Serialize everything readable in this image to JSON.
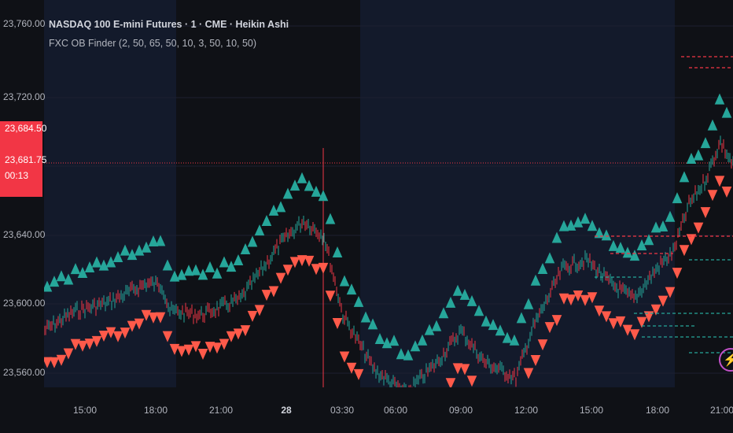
{
  "legend": {
    "title": "NASDAQ 100 E-mini Futures · 1 · CME · Heikin Ashi",
    "indicator": "FXC OB Finder (2, 50, 65, 50, 10, 3, 50, 10, 50)"
  },
  "price_axis": {
    "labels": [
      "23,760.00",
      "23,720.00",
      "23,640.00",
      "23,600.00",
      "23,560.00"
    ],
    "current_price_top": "23,684.50",
    "current_price": "23,681.75",
    "countdown": "00:13"
  },
  "time_axis": {
    "labels": [
      "15:00",
      "18:00",
      "21:00",
      "28",
      "03:30",
      "06:00",
      "09:00",
      "12:00",
      "15:00",
      "18:00",
      "21:00"
    ],
    "bold_label": "28"
  },
  "colors": {
    "bull": "#26a69a",
    "bear": "#f23645",
    "bear_marker": "#ff5a4a",
    "background": "#0f1116",
    "session_shade": "#131a2b",
    "alert": "#c251c9"
  },
  "icons": {
    "alert": "lightning-icon"
  }
}
